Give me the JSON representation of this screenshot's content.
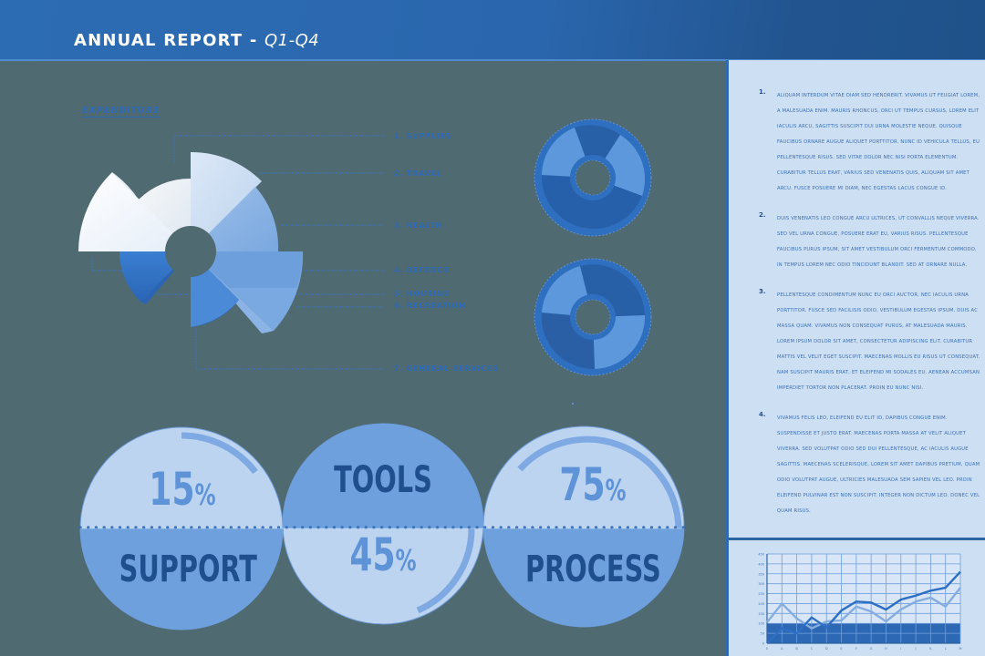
{
  "header": {
    "title": "ANNUAL REPORT -",
    "subtitle": "Q1-Q4"
  },
  "expenditure": {
    "title": "EXPENDITURE",
    "legend": [
      {
        "label": "1. SUPPLIES"
      },
      {
        "label": "2. TRAVEL"
      },
      {
        "label": "3. HEALTH"
      },
      {
        "label": "4. DEFENCE"
      },
      {
        "label": "5. HOUSING"
      },
      {
        "label": "6. RECREATION"
      },
      {
        "label": "7. GENERAL SERVICES"
      }
    ]
  },
  "stats": [
    {
      "value": "15",
      "unit": "%",
      "label": "SUPPORT"
    },
    {
      "value": "45",
      "unit": "%",
      "label": "TOOLS"
    },
    {
      "value": "75",
      "unit": "%",
      "label": "PROCESS"
    }
  ],
  "sidebar": {
    "paragraphs": [
      {
        "num": "1.",
        "lines": [
          "ALIQUAM INTERDUM VITAE DIAM SED HENDRERIT. VIVAMUS UT FEUGIAT LOREM,",
          "A MALESUADA ENIM. MAURIS RHONCUS, ORCI UT TEMPUS CURSUS, LOREM ELIT",
          "IACULIS ARCU, SAGITTIS SUSCIPIT DUI URNA MOLESTIE NEQUE. QUISQUE",
          "FAUCIBUS ORNARE AUGUE ALIQUET PORTTITOR. NUNC ID VEHICULA TELLUS, EU",
          "PELLENTESQUE RISUS. SED VITAE DOLOR NEC NISI PORTA ELEMENTUM.",
          "CURABITUR TELLUS ERAT, VARIUS SED VENENATIS QUIS, ALIQUAM SIT AMET",
          "ARCU. FUSCE POSUERE MI DIAM, NEC EGESTAS LACUS CONGUE ID."
        ]
      },
      {
        "num": "2.",
        "lines": [
          "DUIS VENENATIS LEO CONGUE ARCU ULTRICES, UT CONVALLIS NEQUE VIVERRA.",
          "SED VEL URNA CONGUE, POSUERE ERAT EU, VARIUS RISUS. PELLENTESQUE",
          "FAUCIBUS PURUS IPSUM, SIT AMET VESTIBULUM ORCI FERMENTUM COMMODO.",
          "IN TEMPUS LOREM NEC ODIO TINCIDUNT BLANDIT. SED AT ORNARE NULLA."
        ]
      },
      {
        "num": "3.",
        "lines": [
          "PELLENTESQUE CONDIMENTUM NUNC EU ORCI AUCTOR, NEC IACULIS URNA",
          "PORTTITOR. FUSCE SED FACILISIS ODIO, VESTIBULUM EGESTAS IPSUM. DUIS AC",
          "MASSA QUAM. VIVAMUS NON CONSEQUAT PURUS, AT MALESUADA MAURIS.",
          "LOREM IPSUM DOLOR SIT AMET, CONSECTETUR ADIPISCING ELIT. CURABITUR",
          "MATTIS VEL VELIT EGET SUSCIPIT. MAECENAS MOLLIS EU RISUS UT CONSEQUAT.",
          "NAM SUSCIPIT MAURIS ERAT, ET ELEIFEND MI SODALES EU. AENEAN ACCUMSAN",
          "IMPERDIET TORTOR NON PLACERAT. PROIN EU NUNC NISI."
        ]
      },
      {
        "num": "4.",
        "lines": [
          "VIVAMUS FELIS LEO, ELEIFEND EU ELIT ID, DAPIBUS CONGUE ENIM.",
          "SUSPENDISSE ET JUSTO ERAT. MAECENAS PORTA MASSA AT VELIT ALIQUET",
          "VIVERRA. SED VOLUTPAT ODIO SED DUI PELLENTESQUE, AC IACULIS AUGUE",
          "SAGITTIS. MAECENAS SCELERISQUE, LOREM SIT AMET DAPIBUS PRETIUM, QUAM",
          "ODIO VOLUTPAT AUGUE, ULTRICIES MALESUADA SEM SAPIEN VEL LEO. PROIN",
          "ELEIFEND PULVINAR EST NON SUSCIPIT. INTEGER NON DICTUM LEO. DONEC VEL",
          "QUAM RISUS."
        ]
      }
    ]
  },
  "colors": {
    "background": "#4f6a70",
    "header": "#2a66ad",
    "accent": "#2e6ab8",
    "dark_blue": "#1f4f8f",
    "light_panel": "#cddff3"
  },
  "chart_data": [
    {
      "type": "polar-area",
      "title": "EXPENDITURE",
      "categories": [
        "SUPPLIES",
        "TRAVEL",
        "HEALTH",
        "DEFENCE",
        "HOUSING",
        "RECREATION",
        "GENERAL SERVICES"
      ],
      "legend": [
        "1. SUPPLIES",
        "2. TRAVEL",
        "3. HEALTH",
        "4. DEFENCE",
        "5. HOUSING",
        "6. RECREATION",
        "7. GENERAL SERVICES"
      ]
    },
    {
      "type": "pie",
      "title": "",
      "note": "Donut chart 1 (segments unlabeled)",
      "values": [
        15,
        20,
        40,
        25
      ]
    },
    {
      "type": "pie",
      "title": "",
      "note": "Donut chart 2 (segments unlabeled)",
      "values": [
        25,
        25,
        30,
        20
      ]
    },
    {
      "type": "line",
      "title": "",
      "x": [
        "0",
        "A",
        "B",
        "C",
        "D",
        "E",
        "F",
        "G",
        "H",
        "I",
        "J",
        "K",
        "L",
        "M"
      ],
      "ylim": [
        0,
        450
      ],
      "yticks": [
        0,
        50,
        100,
        150,
        200,
        250,
        300,
        350,
        400,
        450
      ],
      "grid": true,
      "series": [
        {
          "name": "Series 1 (dark)",
          "values": [
            0,
            75,
            50,
            130,
            80,
            165,
            210,
            205,
            170,
            220,
            240,
            265,
            280,
            360
          ]
        },
        {
          "name": "Series 2 (light)",
          "values": [
            105,
            200,
            125,
            75,
            110,
            115,
            185,
            160,
            110,
            170,
            210,
            230,
            185,
            280
          ]
        }
      ],
      "band": {
        "from": 0,
        "to": 100
      }
    }
  ]
}
